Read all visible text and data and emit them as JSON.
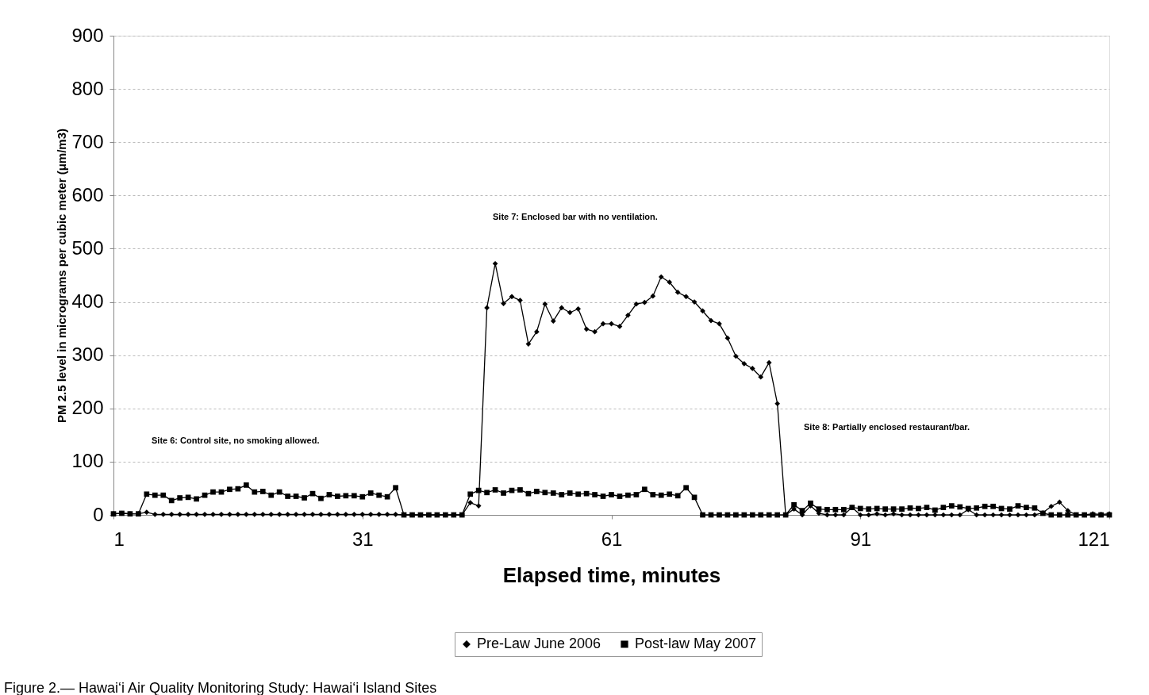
{
  "chart_data": {
    "type": "line",
    "xlabel": "Elapsed time, minutes",
    "ylabel": "PM 2.5 level in micrograms per cubic meter (μm/m3)",
    "x": [
      1,
      2,
      3,
      4,
      5,
      6,
      7,
      8,
      9,
      10,
      11,
      12,
      13,
      14,
      15,
      16,
      17,
      18,
      19,
      20,
      21,
      22,
      23,
      24,
      25,
      26,
      27,
      28,
      29,
      30,
      31,
      32,
      33,
      34,
      35,
      36,
      37,
      38,
      39,
      40,
      41,
      42,
      43,
      44,
      45,
      46,
      47,
      48,
      49,
      50,
      51,
      52,
      53,
      54,
      55,
      56,
      57,
      58,
      59,
      60,
      61,
      62,
      63,
      64,
      65,
      66,
      67,
      68,
      69,
      70,
      71,
      72,
      73,
      74,
      75,
      76,
      77,
      78,
      79,
      80,
      81,
      82,
      83,
      84,
      85,
      86,
      87,
      88,
      89,
      90,
      91,
      92,
      93,
      94,
      95,
      96,
      97,
      98,
      99,
      100,
      101,
      102,
      103,
      104,
      105,
      106,
      107,
      108,
      109,
      110,
      111,
      112,
      113,
      114,
      115,
      116,
      117,
      118,
      119,
      120,
      121
    ],
    "series": [
      {
        "name": "Pre-Law June 2006",
        "color": "#000000",
        "marker": "diamond",
        "values": [
          2,
          3,
          2,
          2,
          5,
          1,
          1,
          1,
          1,
          1,
          1,
          1,
          1,
          1,
          1,
          1,
          1,
          1,
          1,
          1,
          1,
          1,
          1,
          1,
          1,
          1,
          1,
          1,
          1,
          1,
          1,
          1,
          1,
          1,
          1,
          0,
          0,
          0,
          0,
          0,
          0,
          0,
          0,
          23,
          17,
          389,
          472,
          397,
          410,
          403,
          321,
          344,
          396,
          364,
          389,
          380,
          387,
          349,
          344,
          359,
          359,
          354,
          375,
          396,
          399,
          411,
          447,
          437,
          418,
          410,
          400,
          383,
          365,
          359,
          332,
          298,
          284,
          275,
          259,
          286,
          209,
          0,
          11,
          0,
          17,
          3,
          0,
          0,
          0,
          14,
          0,
          0,
          2,
          0,
          2,
          0,
          0,
          0,
          0,
          0,
          0,
          0,
          0,
          10,
          0,
          0,
          0,
          0,
          0,
          0,
          0,
          0,
          4,
          16,
          24,
          8,
          0,
          0,
          2,
          1,
          2
        ]
      },
      {
        "name": "Post-law May 2007",
        "color": "#000000",
        "marker": "square",
        "values": [
          2,
          3,
          2,
          2,
          39,
          37,
          37,
          27,
          32,
          33,
          30,
          37,
          43,
          43,
          48,
          49,
          56,
          43,
          44,
          37,
          43,
          35,
          35,
          32,
          40,
          31,
          38,
          35,
          36,
          36,
          34,
          41,
          37,
          34,
          51,
          0,
          0,
          0,
          0,
          0,
          0,
          0,
          0,
          39,
          46,
          42,
          47,
          41,
          46,
          47,
          40,
          44,
          42,
          41,
          38,
          41,
          39,
          40,
          38,
          35,
          38,
          35,
          37,
          38,
          48,
          38,
          37,
          39,
          36,
          51,
          33,
          0,
          0,
          0,
          0,
          0,
          0,
          0,
          0,
          0,
          0,
          0,
          19,
          8,
          22,
          11,
          10,
          10,
          10,
          14,
          12,
          11,
          12,
          11,
          11,
          11,
          13,
          12,
          14,
          9,
          14,
          17,
          15,
          12,
          13,
          16,
          16,
          12,
          11,
          17,
          14,
          13,
          3,
          0,
          0,
          0,
          0,
          0,
          0,
          0,
          0
        ]
      }
    ],
    "xlim": [
      1,
      121
    ],
    "xticks": [
      1,
      31,
      61,
      91,
      121
    ],
    "ylim": [
      0,
      900
    ],
    "yticks": [
      0,
      100,
      200,
      300,
      400,
      500,
      600,
      700,
      800,
      900
    ],
    "grid": "y",
    "legend": "bottom",
    "line_style": "solid",
    "annotations": [
      "Site 6: Control site, no smoking allowed.",
      "Site 7: Enclosed bar with no ventilation.",
      "Site 8: Partially enclosed restaurant/bar.",
      "Figure 2.— Hawai‘i Air Quality Monitoring Study: Hawai‘i Island Sites"
    ]
  }
}
